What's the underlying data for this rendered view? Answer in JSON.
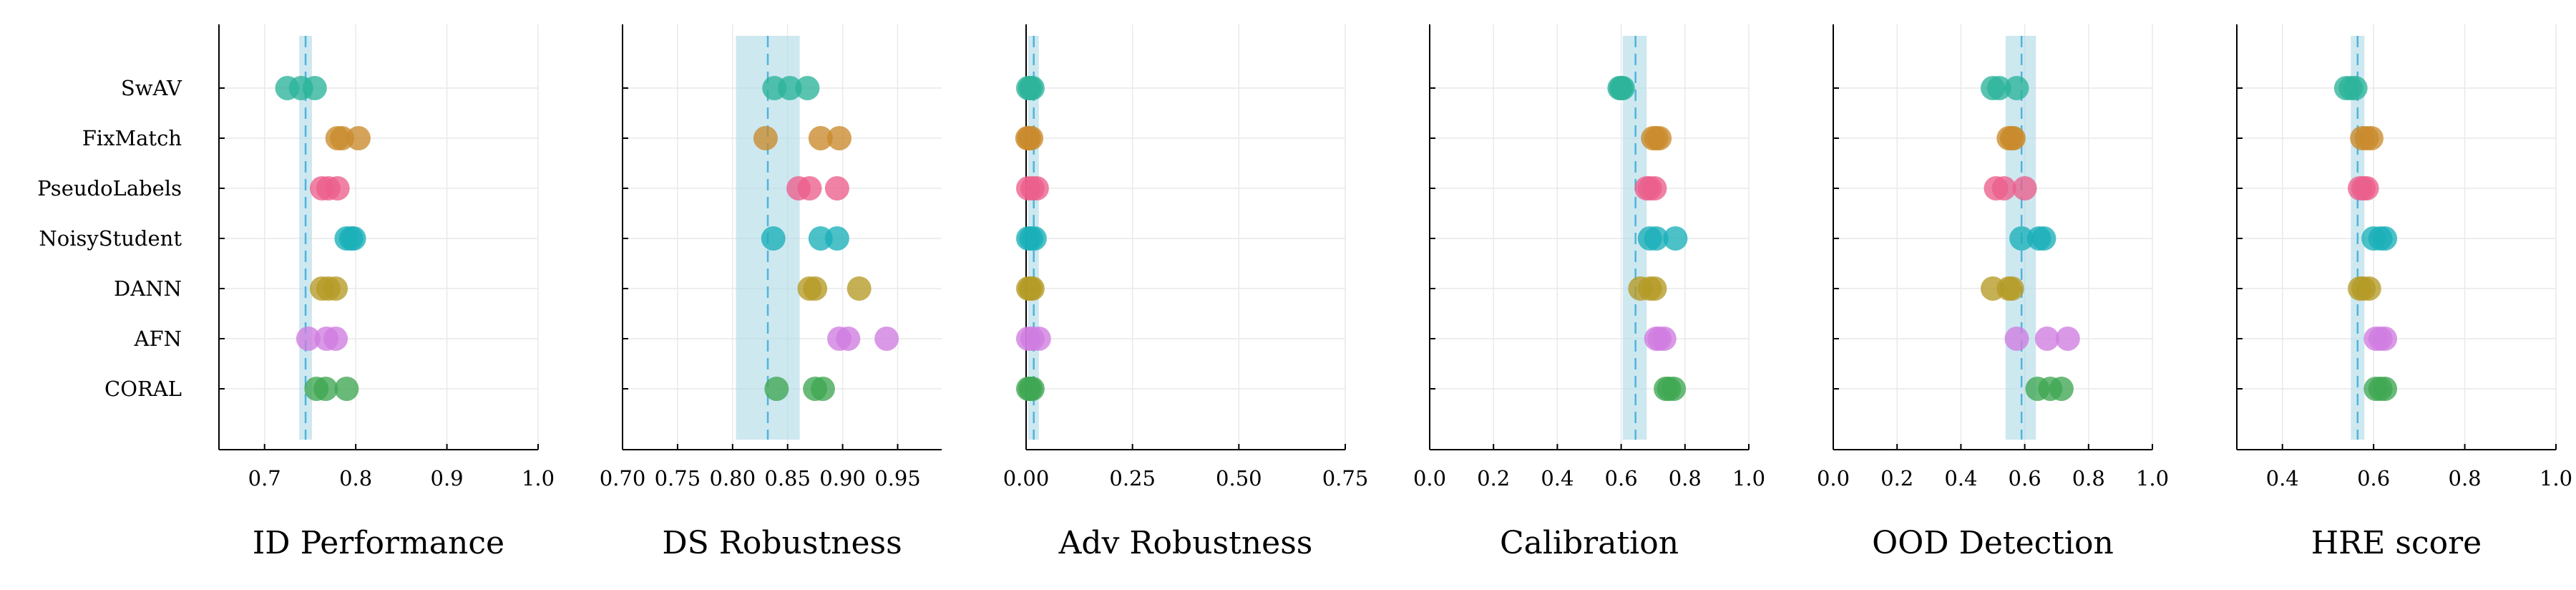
{
  "methods": [
    "SwAV",
    "FixMatch",
    "PseudoLabels",
    "NoisyStudent",
    "DANN",
    "AFN",
    "CORAL"
  ],
  "colors": {
    "SwAV": "#2bb39a",
    "FixMatch": "#c98a2b",
    "PseudoLabels": "#ec5f8c",
    "NoisyStudent": "#19b0b8",
    "DANN": "#b59a25",
    "AFN": "#cf7ce0",
    "CORAL": "#3fa652",
    "reference_line": "#4fb4dc",
    "reference_band": "#add8e6",
    "grid": "#e9e9e9",
    "axis": "#000000"
  },
  "chart_data": [
    {
      "type": "scatter",
      "xlabel": "ID Performance",
      "xlim": [
        0.65,
        1.0
      ],
      "xticks": [
        0.7,
        0.8,
        0.9,
        1.0
      ],
      "xtick_labels": [
        "0.7",
        "0.8",
        "0.9",
        "1.0"
      ],
      "reference": {
        "line": 0.745,
        "band": [
          0.738,
          0.752
        ]
      },
      "series": [
        {
          "name": "SwAV",
          "values": [
            0.725,
            0.74,
            0.755
          ]
        },
        {
          "name": "FixMatch",
          "values": [
            0.78,
            0.785,
            0.803
          ]
        },
        {
          "name": "PseudoLabels",
          "values": [
            0.763,
            0.77,
            0.78
          ]
        },
        {
          "name": "NoisyStudent",
          "values": [
            0.79,
            0.795,
            0.798
          ]
        },
        {
          "name": "DANN",
          "values": [
            0.763,
            0.77,
            0.778
          ]
        },
        {
          "name": "AFN",
          "values": [
            0.748,
            0.768,
            0.778
          ]
        },
        {
          "name": "CORAL",
          "values": [
            0.757,
            0.767,
            0.79
          ]
        }
      ]
    },
    {
      "type": "scatter",
      "xlabel": "DS Robustness",
      "xlim": [
        0.7,
        0.99
      ],
      "xticks": [
        0.7,
        0.75,
        0.8,
        0.85,
        0.9,
        0.95
      ],
      "xtick_labels": [
        "0.70",
        "0.75",
        "0.80",
        "0.85",
        "0.90",
        "0.95"
      ],
      "reference": {
        "line": 0.832,
        "band": [
          0.803,
          0.861
        ]
      },
      "series": [
        {
          "name": "SwAV",
          "values": [
            0.838,
            0.852,
            0.868
          ]
        },
        {
          "name": "FixMatch",
          "values": [
            0.83,
            0.88,
            0.897
          ]
        },
        {
          "name": "PseudoLabels",
          "values": [
            0.86,
            0.87,
            0.895
          ]
        },
        {
          "name": "NoisyStudent",
          "values": [
            0.837,
            0.88,
            0.895
          ]
        },
        {
          "name": "DANN",
          "values": [
            0.87,
            0.875,
            0.915
          ]
        },
        {
          "name": "AFN",
          "values": [
            0.897,
            0.905,
            0.94
          ]
        },
        {
          "name": "CORAL",
          "values": [
            0.84,
            0.875,
            0.882
          ]
        }
      ]
    },
    {
      "type": "scatter",
      "xlabel": "Adv Robustness",
      "xlim": [
        0.0,
        0.75
      ],
      "xticks": [
        0.0,
        0.25,
        0.5,
        0.75
      ],
      "xtick_labels": [
        "0.00",
        "0.25",
        "0.50",
        "0.75"
      ],
      "reference": {
        "line": 0.018,
        "band": [
          0.005,
          0.03
        ]
      },
      "series": [
        {
          "name": "SwAV",
          "values": [
            0.005,
            0.01,
            0.015
          ]
        },
        {
          "name": "FixMatch",
          "values": [
            0.003,
            0.007,
            0.012
          ]
        },
        {
          "name": "PseudoLabels",
          "values": [
            0.005,
            0.015,
            0.025
          ]
        },
        {
          "name": "NoisyStudent",
          "values": [
            0.005,
            0.012,
            0.02
          ]
        },
        {
          "name": "DANN",
          "values": [
            0.005,
            0.01,
            0.015
          ]
        },
        {
          "name": "AFN",
          "values": [
            0.005,
            0.015,
            0.03
          ]
        },
        {
          "name": "CORAL",
          "values": [
            0.005,
            0.01,
            0.015
          ]
        }
      ]
    },
    {
      "type": "scatter",
      "xlabel": "Calibration",
      "xlim": [
        0.0,
        1.0
      ],
      "xticks": [
        0.0,
        0.2,
        0.4,
        0.6,
        0.8,
        1.0
      ],
      "xtick_labels": [
        "0.0",
        "0.2",
        "0.4",
        "0.6",
        "0.8",
        "1.0"
      ],
      "reference": {
        "line": 0.645,
        "band": [
          0.605,
          0.68
        ]
      },
      "series": [
        {
          "name": "SwAV",
          "values": [
            0.595,
            0.6,
            0.605
          ]
        },
        {
          "name": "FixMatch",
          "values": [
            0.7,
            0.71,
            0.72
          ]
        },
        {
          "name": "PseudoLabels",
          "values": [
            0.68,
            0.69,
            0.705
          ]
        },
        {
          "name": "NoisyStudent",
          "values": [
            0.69,
            0.71,
            0.77
          ]
        },
        {
          "name": "DANN",
          "values": [
            0.66,
            0.69,
            0.705
          ]
        },
        {
          "name": "AFN",
          "values": [
            0.71,
            0.72,
            0.735
          ]
        },
        {
          "name": "CORAL",
          "values": [
            0.74,
            0.75,
            0.765
          ]
        }
      ]
    },
    {
      "type": "scatter",
      "xlabel": "OOD Detection",
      "xlim": [
        0.0,
        1.0
      ],
      "xticks": [
        0.0,
        0.2,
        0.4,
        0.6,
        0.8,
        1.0
      ],
      "xtick_labels": [
        "0.0",
        "0.2",
        "0.4",
        "0.6",
        "0.8",
        "1.0"
      ],
      "reference": {
        "line": 0.59,
        "band": [
          0.54,
          0.635
        ]
      },
      "series": [
        {
          "name": "SwAV",
          "values": [
            0.5,
            0.52,
            0.575
          ]
        },
        {
          "name": "FixMatch",
          "values": [
            0.55,
            0.56,
            0.565
          ]
        },
        {
          "name": "PseudoLabels",
          "values": [
            0.51,
            0.535,
            0.6
          ]
        },
        {
          "name": "NoisyStudent",
          "values": [
            0.59,
            0.645,
            0.66
          ]
        },
        {
          "name": "DANN",
          "values": [
            0.5,
            0.55,
            0.56
          ]
        },
        {
          "name": "AFN",
          "values": [
            0.575,
            0.67,
            0.735
          ]
        },
        {
          "name": "CORAL",
          "values": [
            0.64,
            0.68,
            0.715
          ]
        }
      ]
    },
    {
      "type": "scatter",
      "xlabel": "HRE score",
      "xlim": [
        0.3,
        1.0
      ],
      "xticks": [
        0.4,
        0.6,
        0.8,
        1.0
      ],
      "xtick_labels": [
        "0.4",
        "0.6",
        "0.8",
        "1.0"
      ],
      "reference": {
        "line": 0.565,
        "band": [
          0.55,
          0.58
        ]
      },
      "series": [
        {
          "name": "SwAV",
          "values": [
            0.54,
            0.55,
            0.56
          ]
        },
        {
          "name": "FixMatch",
          "values": [
            0.575,
            0.585,
            0.595
          ]
        },
        {
          "name": "PseudoLabels",
          "values": [
            0.57,
            0.578,
            0.585
          ]
        },
        {
          "name": "NoisyStudent",
          "values": [
            0.6,
            0.615,
            0.625
          ]
        },
        {
          "name": "DANN",
          "values": [
            0.57,
            0.578,
            0.59
          ]
        },
        {
          "name": "AFN",
          "values": [
            0.605,
            0.615,
            0.625
          ]
        },
        {
          "name": "CORAL",
          "values": [
            0.605,
            0.615,
            0.625
          ]
        }
      ]
    }
  ]
}
